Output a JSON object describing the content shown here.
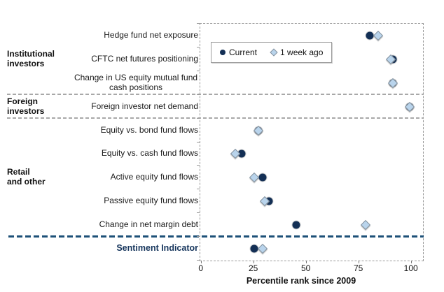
{
  "legend": {
    "current": "Current",
    "week_ago": "1 week ago"
  },
  "colors": {
    "current_marker": "#132f55",
    "week_ago_marker_fill": "#b9d4ec",
    "week_ago_marker_border": "#85929e",
    "sentiment_line": "#1d5078",
    "group_separator": "#a8a8a8",
    "emphasis_text": "#17365d"
  },
  "chart_data": {
    "type": "scatter",
    "title": "",
    "xlabel": "Percentile rank since 2009",
    "ylabel": "",
    "xticks": [
      0,
      25,
      50,
      75,
      100
    ],
    "xlim": [
      0,
      105
    ],
    "grid": false,
    "legend_position": "top-left-inside",
    "categories": [
      "Hedge fund net exposure",
      "CFTC net futures positioning",
      "Change in US equity mutual fund cash positions",
      "Foreign investor net demand",
      "Equity vs. bond fund flows",
      "Equity vs. cash fund flows",
      "Active equity fund flows",
      "Passive equity fund flows",
      "Change in net margin debt",
      "Sentiment Indicator"
    ],
    "emphasis_row": 9,
    "series": [
      {
        "name": "Current",
        "marker": "circle",
        "color": "#132f55",
        "values": [
          80,
          91,
          91,
          99,
          27,
          19,
          29,
          32,
          45,
          25
        ]
      },
      {
        "name": "1 week ago",
        "marker": "diamond",
        "color": "#b9d4ec",
        "border": "#85929e",
        "values": [
          84,
          90,
          91,
          99,
          27,
          16,
          25,
          30,
          78,
          29
        ]
      }
    ],
    "row_groups": [
      {
        "label_lines": [
          "Institutional",
          "investors"
        ],
        "first_row": 0,
        "last_row": 2
      },
      {
        "label_lines": [
          "Foreign",
          "investors"
        ],
        "first_row": 3,
        "last_row": 3
      },
      {
        "label_lines": [
          "Retail",
          "and other"
        ],
        "first_row": 4,
        "last_row": 8
      }
    ],
    "separators": [
      {
        "after_row": 2,
        "style": "gray"
      },
      {
        "after_row": 3,
        "style": "gray"
      },
      {
        "after_row": 8,
        "style": "navy"
      }
    ]
  }
}
